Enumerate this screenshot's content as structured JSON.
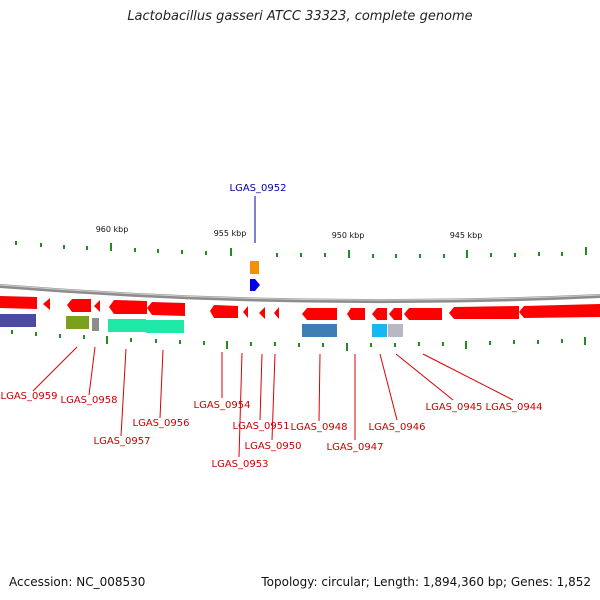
{
  "title": "Lactobacillus gasseri ATCC 33323, complete genome",
  "footer": {
    "accession": "Accession: NC_008530",
    "summary": "Topology: circular; Length: 1,894,360 bp; Genes: 1,852"
  },
  "colors": {
    "label_red": "#cc0000",
    "label_blue": "#0000aa",
    "forward_gene": "#0000ee",
    "reverse_gene": "#ff0000",
    "tick": "#228b22",
    "backbone": "#888888"
  },
  "scale_labels": [
    "960 kbp",
    "955 kbp",
    "950 kbp",
    "945 kbp"
  ],
  "highlight": {
    "label": "LGAS_0952",
    "strand": "forward"
  },
  "gene_labels": [
    "LGAS_0959",
    "LGAS_0958",
    "LGAS_0957",
    "LGAS_0956",
    "LGAS_0954",
    "LGAS_0953",
    "LGAS_0951",
    "LGAS_0950",
    "LGAS_0948",
    "LGAS_0947",
    "LGAS_0946",
    "LGAS_0945",
    "LGAS_0944"
  ]
}
